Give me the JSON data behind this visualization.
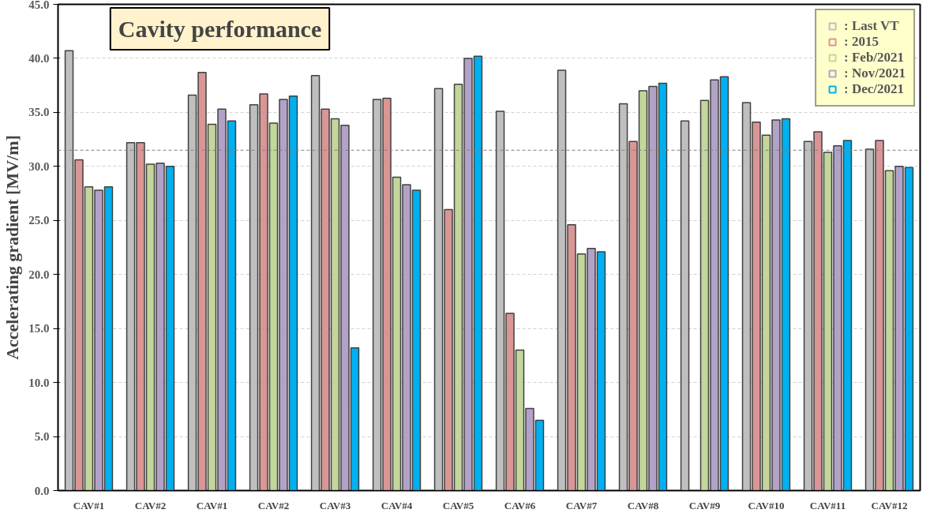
{
  "chart_data": {
    "type": "bar",
    "ylabel": "Accelerating gradient [MV/m]",
    "categories": [
      "CAV#1",
      "CAV#2",
      "CAV#1",
      "CAV#2",
      "CAV#3",
      "CAV#4",
      "CAV#5",
      "CAV#6",
      "CAV#7",
      "CAV#8",
      "CAV#9",
      "CAV#10",
      "CAV#11",
      "CAV#12"
    ],
    "series": [
      {
        "name": ": Last VT",
        "color": "#bfbfbf",
        "values": [
          40.7,
          32.2,
          36.6,
          35.7,
          38.4,
          36.2,
          37.2,
          35.1,
          38.9,
          35.8,
          34.2,
          35.9,
          32.3,
          31.6
        ]
      },
      {
        "name": ": 2015",
        "color": "#d99694",
        "values": [
          30.6,
          32.2,
          38.7,
          36.7,
          35.3,
          36.3,
          26.0,
          16.4,
          24.6,
          32.3,
          null,
          34.1,
          33.2,
          32.4
        ]
      },
      {
        "name": ": Feb/2021",
        "color": "#c3d69b",
        "values": [
          28.1,
          30.2,
          33.9,
          34.0,
          34.4,
          29.0,
          37.6,
          13.0,
          21.9,
          37.0,
          36.1,
          32.9,
          31.3,
          29.6
        ]
      },
      {
        "name": ": Nov/2021",
        "color": "#b3a2c7",
        "values": [
          27.8,
          30.3,
          35.3,
          36.2,
          33.8,
          28.3,
          40.0,
          7.6,
          22.4,
          37.4,
          38.0,
          34.3,
          31.9,
          30.0
        ]
      },
      {
        "name": ": Dec/2021",
        "color": "#00b0f0",
        "values": [
          28.1,
          30.0,
          34.2,
          36.5,
          13.2,
          27.8,
          40.2,
          6.5,
          22.1,
          37.7,
          38.3,
          34.4,
          32.4,
          29.9
        ]
      }
    ],
    "ylim": [
      0,
      45
    ],
    "yticks": [
      {
        "value": 0,
        "label": "0.0"
      },
      {
        "value": 5,
        "label": "5.0"
      },
      {
        "value": 10,
        "label": "10.0"
      },
      {
        "value": 15,
        "label": "15.0"
      },
      {
        "value": 20,
        "label": "20.0"
      },
      {
        "value": 25,
        "label": "25.0"
      },
      {
        "value": 30,
        "label": "30.0"
      },
      {
        "value": 35,
        "label": "35.0"
      },
      {
        "value": 40,
        "label": "40.0"
      },
      {
        "value": 45,
        "label": "45.0"
      }
    ],
    "ref_lines": [
      {
        "axis": "y",
        "value": 31.5,
        "label": null,
        "color": "#808080",
        "line_style": "dashed"
      }
    ],
    "annotations": [
      "Cavity performance"
    ],
    "grid": "y",
    "legend": "top right"
  }
}
